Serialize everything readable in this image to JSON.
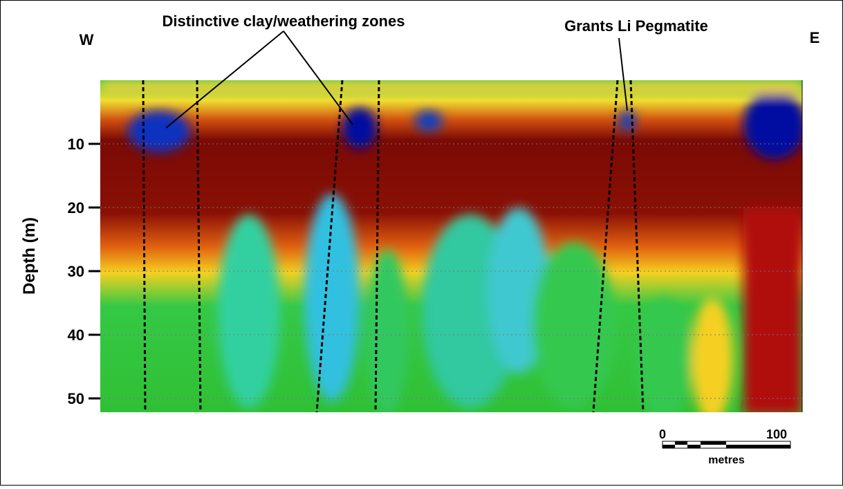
{
  "directions": {
    "west": "W",
    "east": "E"
  },
  "annotations": [
    "Distinctive clay/weathering zones",
    "Grants Li Pegmatite"
  ],
  "depth_axis": {
    "label": "Depth (m)",
    "ticks": [
      10,
      20,
      30,
      40,
      50
    ]
  },
  "scale_bar": {
    "start": 0,
    "end": 100,
    "unit": "metres"
  }
}
